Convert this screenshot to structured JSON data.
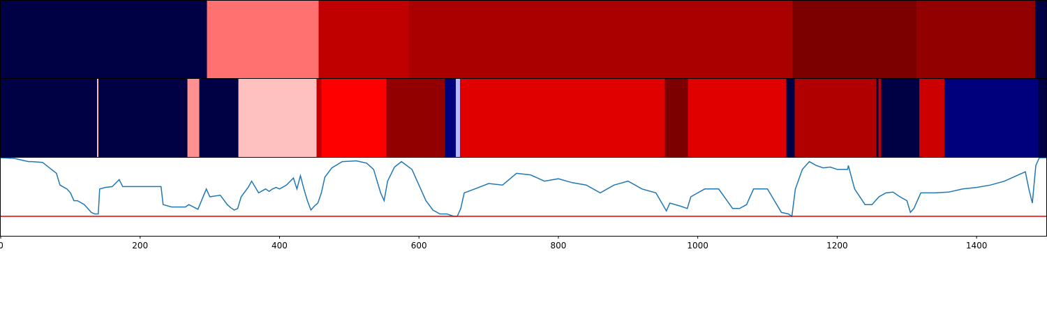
{
  "chart_data": [
    {
      "type": "heatmap",
      "panel": "top-band",
      "x_domain": [
        0,
        1500
      ],
      "segments": [
        {
          "start": 0,
          "end": 296,
          "color": "#000045"
        },
        {
          "start": 296,
          "end": 456,
          "color": "#ff7070"
        },
        {
          "start": 456,
          "end": 586,
          "color": "#c00000"
        },
        {
          "start": 586,
          "end": 1136,
          "color": "#aa0000"
        },
        {
          "start": 1136,
          "end": 1314,
          "color": "#7c0000"
        },
        {
          "start": 1314,
          "end": 1484,
          "color": "#920000"
        },
        {
          "start": 1484,
          "end": 1500,
          "color": "#000045"
        }
      ]
    },
    {
      "type": "heatmap",
      "panel": "middle-band",
      "x_domain": [
        0,
        1500
      ],
      "segments": [
        {
          "start": 0,
          "end": 138,
          "color": "#000045"
        },
        {
          "start": 138,
          "end": 140,
          "color": "#ffbdbd"
        },
        {
          "start": 140,
          "end": 268,
          "color": "#000045"
        },
        {
          "start": 268,
          "end": 285,
          "color": "#ff9090"
        },
        {
          "start": 285,
          "end": 341,
          "color": "#000045"
        },
        {
          "start": 341,
          "end": 453,
          "color": "#ffc0c0"
        },
        {
          "start": 453,
          "end": 460,
          "color": "#c00000"
        },
        {
          "start": 460,
          "end": 553,
          "color": "#ff0000"
        },
        {
          "start": 553,
          "end": 637,
          "color": "#920000"
        },
        {
          "start": 637,
          "end": 653,
          "color": "#00007c"
        },
        {
          "start": 653,
          "end": 659,
          "color": "#b8b8ff"
        },
        {
          "start": 659,
          "end": 953,
          "color": "#e00000"
        },
        {
          "start": 953,
          "end": 986,
          "color": "#7c0000"
        },
        {
          "start": 986,
          "end": 1127,
          "color": "#e00000"
        },
        {
          "start": 1127,
          "end": 1139,
          "color": "#000045"
        },
        {
          "start": 1139,
          "end": 1256,
          "color": "#b00000"
        },
        {
          "start": 1256,
          "end": 1259,
          "color": "#000045"
        },
        {
          "start": 1259,
          "end": 1263,
          "color": "#c00000"
        },
        {
          "start": 1263,
          "end": 1318,
          "color": "#000045"
        },
        {
          "start": 1318,
          "end": 1354,
          "color": "#cc0000"
        },
        {
          "start": 1354,
          "end": 1488,
          "color": "#00007c"
        },
        {
          "start": 1488,
          "end": 1500,
          "color": "#000045"
        }
      ]
    },
    {
      "type": "line",
      "panel": "signal",
      "line_color": "#1f77b4",
      "threshold": 0.25,
      "threshold_color": "#e00000",
      "xlim": [
        0,
        1500
      ],
      "ylim": [
        0,
        1.0
      ],
      "xticks": [
        0,
        200,
        400,
        600,
        800,
        1000,
        1200,
        1400
      ],
      "xtick_labels": [
        "0",
        "200",
        "400",
        "600",
        "800",
        "1000",
        "1200",
        "1400"
      ],
      "series": [
        {
          "x": [
            0,
            20,
            40,
            45,
            60,
            80,
            85,
            95,
            100,
            105,
            110,
            120,
            130,
            135,
            140,
            142,
            150,
            160,
            170,
            175,
            200,
            230,
            233,
            245,
            265,
            270,
            283,
            295,
            300,
            315,
            325,
            330,
            335,
            340,
            345,
            355,
            360,
            370,
            380,
            385,
            390,
            395,
            400,
            410,
            420,
            425,
            430,
            435,
            440,
            445,
            450,
            455,
            460,
            465,
            475,
            490,
            510,
            525,
            535,
            540,
            545,
            550,
            555,
            565,
            575,
            590,
            600,
            610,
            620,
            630,
            640,
            650,
            655,
            660,
            665,
            680,
            700,
            720,
            740,
            760,
            780,
            800,
            820,
            840,
            860,
            880,
            900,
            920,
            940,
            955,
            960,
            975,
            985,
            990,
            1000,
            1010,
            1030,
            1050,
            1060,
            1070,
            1080,
            1100,
            1110,
            1120,
            1130,
            1135,
            1140,
            1150,
            1160,
            1170,
            1180,
            1190,
            1200,
            1215,
            1216,
            1225,
            1240,
            1250,
            1260,
            1270,
            1280,
            1290,
            1300,
            1305,
            1310,
            1320,
            1340,
            1360,
            1380,
            1400,
            1420,
            1440,
            1460,
            1470,
            1475,
            1480,
            1485,
            1490,
            1500
          ],
          "y": [
            1.0,
            0.99,
            0.95,
            0.95,
            0.94,
            0.8,
            0.65,
            0.6,
            0.55,
            0.45,
            0.45,
            0.4,
            0.3,
            0.28,
            0.28,
            0.6,
            0.62,
            0.63,
            0.72,
            0.63,
            0.63,
            0.63,
            0.4,
            0.37,
            0.37,
            0.4,
            0.34,
            0.6,
            0.5,
            0.52,
            0.4,
            0.36,
            0.33,
            0.35,
            0.5,
            0.62,
            0.7,
            0.55,
            0.6,
            0.57,
            0.6,
            0.62,
            0.6,
            0.65,
            0.74,
            0.6,
            0.77,
            0.6,
            0.45,
            0.33,
            0.38,
            0.42,
            0.55,
            0.75,
            0.87,
            0.95,
            0.96,
            0.93,
            0.85,
            0.7,
            0.55,
            0.45,
            0.7,
            0.88,
            0.95,
            0.85,
            0.65,
            0.45,
            0.33,
            0.28,
            0.28,
            0.25,
            0.25,
            0.35,
            0.55,
            0.6,
            0.67,
            0.65,
            0.8,
            0.78,
            0.7,
            0.73,
            0.68,
            0.65,
            0.55,
            0.65,
            0.7,
            0.6,
            0.55,
            0.32,
            0.42,
            0.38,
            0.35,
            0.5,
            0.55,
            0.6,
            0.6,
            0.35,
            0.35,
            0.4,
            0.6,
            0.6,
            0.45,
            0.3,
            0.28,
            0.25,
            0.6,
            0.85,
            0.95,
            0.9,
            0.87,
            0.88,
            0.85,
            0.85,
            0.9,
            0.6,
            0.4,
            0.4,
            0.5,
            0.55,
            0.56,
            0.5,
            0.45,
            0.3,
            0.35,
            0.55,
            0.55,
            0.56,
            0.6,
            0.62,
            0.65,
            0.7,
            0.78,
            0.82,
            0.6,
            0.42,
            0.9,
            1.0,
            1.0
          ]
        }
      ]
    }
  ]
}
